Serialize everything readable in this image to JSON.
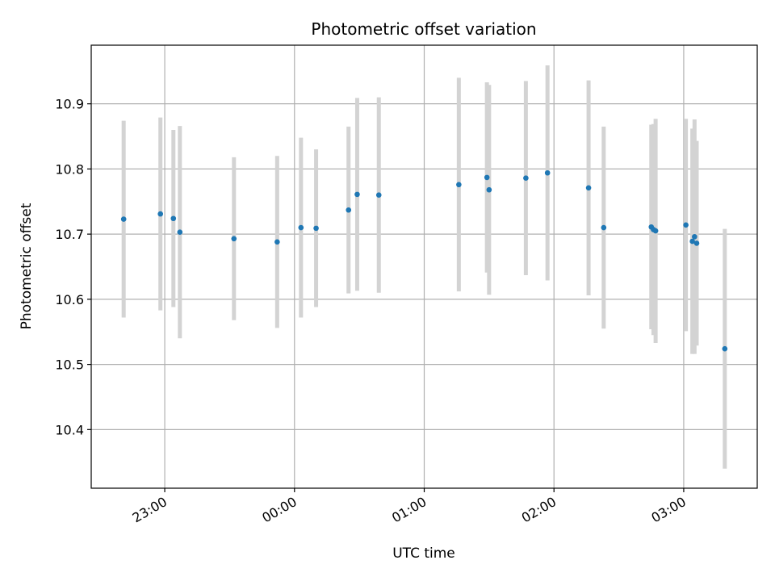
{
  "chart_data": {
    "type": "scatter",
    "title": "Photometric offset variation",
    "xlabel": "UTC time",
    "ylabel": "Photometric offset",
    "grid": true,
    "xlim": [
      "22:26",
      "03:34"
    ],
    "ylim": [
      10.31,
      10.99
    ],
    "x_ticks": [
      "23:00",
      "00:00",
      "01:00",
      "02:00",
      "03:00"
    ],
    "y_ticks": [
      10.4,
      10.5,
      10.6,
      10.7,
      10.8,
      10.9
    ],
    "colors": {
      "points": "#1f77b4",
      "error_bars": "#d3d3d3",
      "grid": "#b0b0b0"
    },
    "points": [
      {
        "x": "22:41",
        "y": 10.723,
        "yerr": 0.151
      },
      {
        "x": "22:58",
        "y": 10.731,
        "yerr": 0.148
      },
      {
        "x": "23:04",
        "y": 10.724,
        "yerr": 0.136
      },
      {
        "x": "23:07",
        "y": 10.703,
        "yerr": 0.163
      },
      {
        "x": "23:32",
        "y": 10.693,
        "yerr": 0.125
      },
      {
        "x": "23:52",
        "y": 10.688,
        "yerr": 0.132
      },
      {
        "x": "00:03",
        "y": 10.71,
        "yerr": 0.138
      },
      {
        "x": "00:10",
        "y": 10.709,
        "yerr": 0.121
      },
      {
        "x": "00:25",
        "y": 10.737,
        "yerr": 0.128
      },
      {
        "x": "00:29",
        "y": 10.761,
        "yerr": 0.148
      },
      {
        "x": "00:39",
        "y": 10.76,
        "yerr": 0.15
      },
      {
        "x": "01:16",
        "y": 10.776,
        "yerr": 0.164
      },
      {
        "x": "01:29",
        "y": 10.787,
        "yerr": 0.146
      },
      {
        "x": "01:30",
        "y": 10.768,
        "yerr": 0.161
      },
      {
        "x": "01:47",
        "y": 10.786,
        "yerr": 0.149
      },
      {
        "x": "01:57",
        "y": 10.794,
        "yerr": 0.165
      },
      {
        "x": "02:16",
        "y": 10.771,
        "yerr": 0.165
      },
      {
        "x": "02:23",
        "y": 10.71,
        "yerr": 0.155
      },
      {
        "x": "02:45",
        "y": 10.711,
        "yerr": 0.157
      },
      {
        "x": "02:46",
        "y": 10.707,
        "yerr": 0.162
      },
      {
        "x": "02:47",
        "y": 10.705,
        "yerr": 0.172
      },
      {
        "x": "03:01",
        "y": 10.714,
        "yerr": 0.163
      },
      {
        "x": "03:04",
        "y": 10.689,
        "yerr": 0.173
      },
      {
        "x": "03:05",
        "y": 10.696,
        "yerr": 0.18
      },
      {
        "x": "03:06",
        "y": 10.686,
        "yerr": 0.157
      },
      {
        "x": "03:19",
        "y": 10.524,
        "yerr": 0.184
      }
    ]
  }
}
